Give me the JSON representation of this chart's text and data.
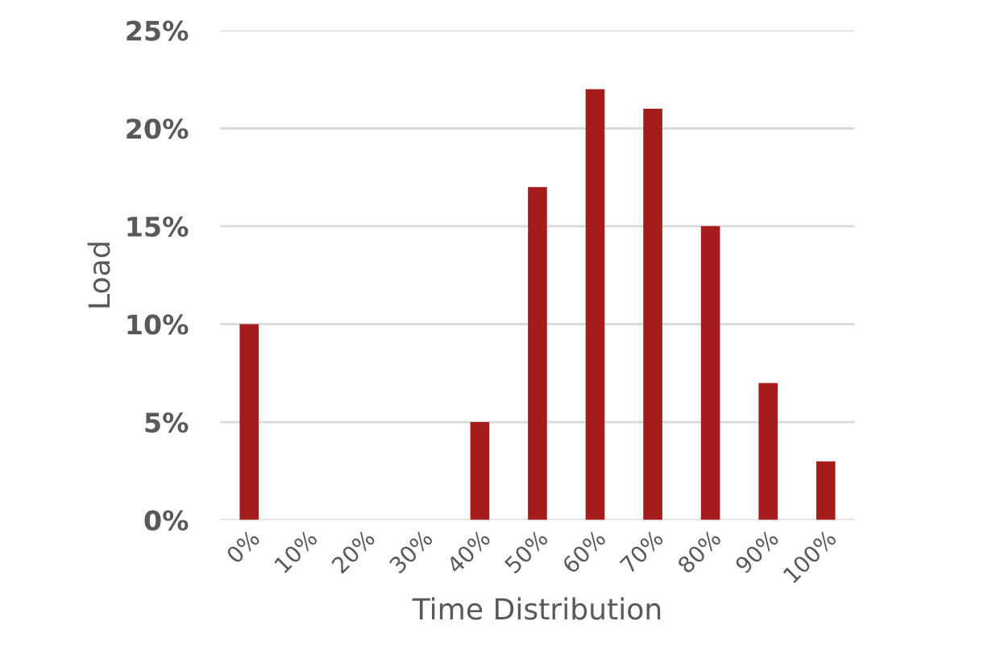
{
  "chart_data": {
    "type": "bar",
    "xlabel": "Time Distribution",
    "ylabel": "Load",
    "categories": [
      "0%",
      "10%",
      "20%",
      "30%",
      "40%",
      "50%",
      "60%",
      "70%",
      "80%",
      "90%",
      "100%"
    ],
    "values": [
      10,
      0,
      0,
      0,
      5,
      17,
      22,
      21,
      15,
      7,
      3
    ],
    "color": "#a51c1c",
    "ylim": [
      0,
      25
    ],
    "yticks": [
      {
        "value": 0,
        "label": "0%"
      },
      {
        "value": 5,
        "label": "5%"
      },
      {
        "value": 10,
        "label": "10%"
      },
      {
        "value": 15,
        "label": "15%"
      },
      {
        "value": 20,
        "label": "20%"
      },
      {
        "value": 25,
        "label": "25%"
      }
    ],
    "grid": "y"
  }
}
